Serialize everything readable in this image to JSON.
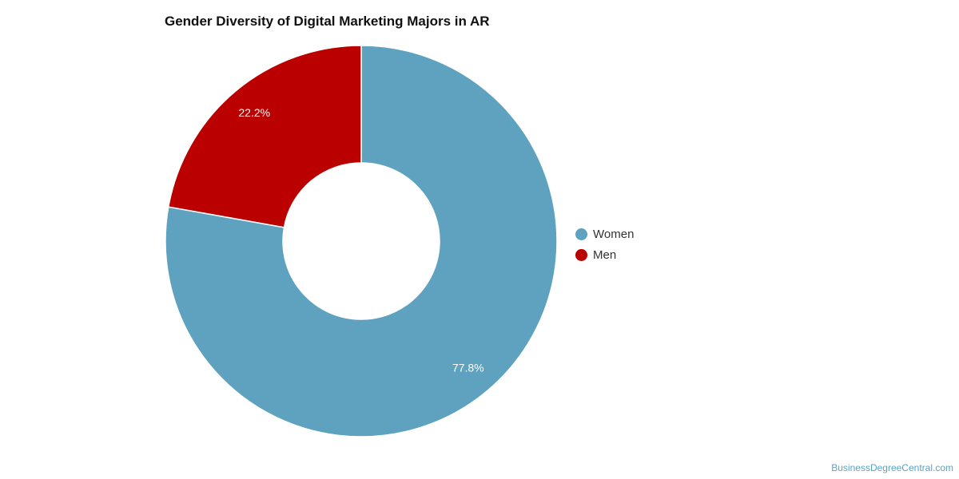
{
  "chart_data": {
    "type": "pie",
    "variant": "donut",
    "title": "Gender Diversity of Digital Marketing Majors in AR",
    "categories": [
      "Women",
      "Men"
    ],
    "values": [
      77.8,
      22.2
    ],
    "labels": [
      "77.8%",
      "22.2%"
    ],
    "colors": [
      "#5ea2bf",
      "#bb0000"
    ],
    "legend_position": "right"
  },
  "legend": {
    "items": [
      {
        "label": "Women",
        "color": "#5ea2bf"
      },
      {
        "label": "Men",
        "color": "#bb0000"
      }
    ]
  },
  "credit": "BusinessDegreeCentral.com"
}
